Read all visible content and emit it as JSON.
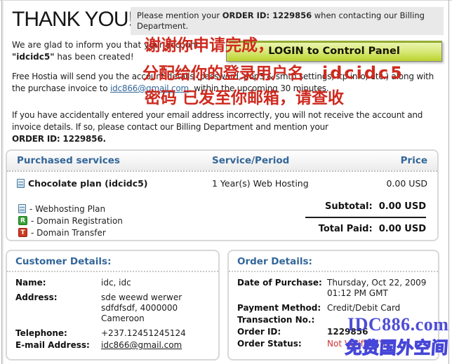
{
  "header": {
    "title": "THANK YOU!",
    "note_pre": "Please mention your ",
    "note_bold": "ORDER ID: 1229856",
    "note_post": " when contacting our Billing Department."
  },
  "intro": {
    "p1_pre": "We are glad to inform you that your account ",
    "p1_bold": "\"idcidc5\"",
    "p1_post": " has been created!",
    "login_button": "LOGIN to Control Panel",
    "p2_pre": "Free Hostia will send you the account details (password, pop3 & smtp settings, ftp info, etc.) along with the purchase invoice to ",
    "p2_link": "idc866@gmail.com",
    "p2_post": ", within the upcoming 30 minutes.",
    "p3_pre": "If you have accidentally entered your email address incorrectly, you will not receive the account and invoice details. If so, please contact our Billing Department and mention your ",
    "p3_bold": "ORDER ID: 1229856."
  },
  "overlay": {
    "line1": "谢谢你申请完成，",
    "line2_text": "分配给你的登录用户名",
    "line2_value": "idcidc5",
    "line3": "密码 已发至你邮箱，请查收"
  },
  "services": {
    "headers": [
      "Purchased services",
      "Service/Period",
      "Price"
    ],
    "row": {
      "name": "Chocolate plan (idcidc5)",
      "period": "1 Year(s) Web Hosting",
      "price": "0.00 USD"
    },
    "legend": [
      {
        "label": "- Webhosting Plan"
      },
      {
        "glyph": "R",
        "label": "- Domain Registration"
      },
      {
        "glyph": "T",
        "label": "- Domain Transfer"
      }
    ],
    "subtotal_label": "Subtotal:",
    "subtotal_value": "0.00 USD",
    "total_label": "Total Paid:",
    "total_value": "0.00 USD"
  },
  "customer": {
    "title": "Customer Details:",
    "rows": [
      {
        "label": "Name:",
        "value": "idc, idc"
      },
      {
        "label": "Address:",
        "value": "sde weewd werwer\nsdfdfsdf, 4000000\nCameroon"
      },
      {
        "label": "Telephone:",
        "value": "+237.12451245124"
      },
      {
        "label": "E-mail Address:",
        "value": "idc866@gmail.com"
      }
    ]
  },
  "order": {
    "title": "Order Details:",
    "rows": [
      {
        "label": "Date of Purchase:",
        "value": "Thursday, Oct 22, 2009\n01:12 PM GMT"
      },
      {
        "label": "Payment Method:",
        "value": "Credit/Debit Card"
      },
      {
        "label": "Transaction No.:",
        "value": ""
      },
      {
        "label": "Order ID:",
        "value": "1229856"
      },
      {
        "label": "Order Status:",
        "value": "Not Verified Yet"
      }
    ]
  },
  "watermark": {
    "line1": "IDC886.com",
    "line2": "免费国外空间"
  },
  "colors": {
    "accent_blue": "#336699",
    "overlay_red": "#cf2a1f",
    "status_red": "#cc3333",
    "watermark_blue": "#3a3ad2",
    "button_green": "#bcd32c",
    "note_gray": "#e9e9e9"
  }
}
